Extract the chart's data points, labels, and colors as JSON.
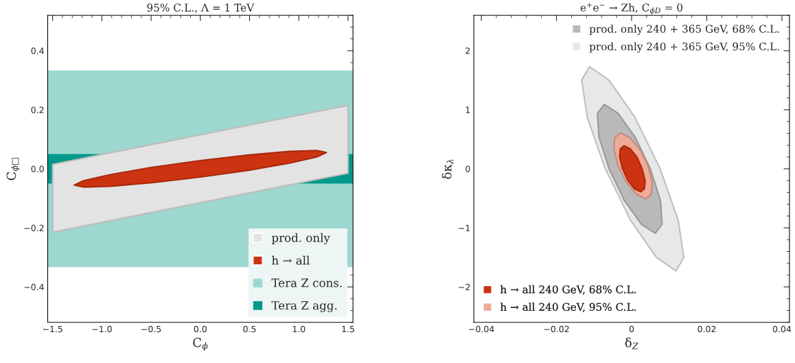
{
  "chart_data": [
    {
      "type": "area",
      "title": "95% C.L., Λ = 1 TeV",
      "xlabel": "C$_{ϕ}$",
      "ylabel": "C$_{ϕ□}$",
      "xlim": [
        -1.55,
        1.55
      ],
      "ylim": [
        -0.52,
        0.52
      ],
      "xticks": [
        {
          "value": -1.5,
          "label": "−1.5"
        },
        {
          "value": -1.0,
          "label": "−1.0"
        },
        {
          "value": -0.5,
          "label": "−0.5"
        },
        {
          "value": 0,
          "label": "0.0"
        },
        0.5,
        {
          "value": 1.0,
          "label": "1.0"
        },
        1.5
      ],
      "yticks": [
        {
          "value": -0.4,
          "label": "−0.4"
        },
        {
          "value": -0.2,
          "label": "−0.2"
        },
        {
          "value": 0,
          "label": "0.0"
        },
        0.2,
        0.4
      ],
      "bands": [
        {
          "axis": "y",
          "from": -0.333,
          "to": 0.333,
          "label": "Tera Z cons.",
          "color": "#9dd8d0"
        },
        {
          "axis": "y",
          "from": -0.05,
          "to": 0.05,
          "label": "Tera Z agg.",
          "color": "#00998a"
        }
      ],
      "series": [
        {
          "name": "prod. only",
          "color": "#e3e3e3",
          "x": [
            -1.5,
            1.5,
            1.5,
            -1.5
          ],
          "values": [
            -0.215,
            -0.015,
            0.215,
            0.015
          ]
        },
        {
          "name": "h → all",
          "color": "#cc3311",
          "x": [
            1.28,
            1.183,
            0.905,
            0.49,
            0,
            -0.49,
            -0.905,
            -1.183,
            -1.28,
            -1.183,
            -0.905,
            -0.49,
            0,
            0.49,
            0.905,
            1.183
          ],
          "values": [
            0.055,
            0.062,
            0.059,
            0.047,
            0.028,
            0.005,
            -0.019,
            -0.04,
            -0.055,
            -0.062,
            -0.059,
            -0.047,
            -0.028,
            -0.005,
            0.019,
            0.04
          ]
        }
      ],
      "legend": "bottom right",
      "grid": false
    },
    {
      "type": "area",
      "title": "e$^{+}$e$^{−}$ → Zh, C$_{ϕD}$ = 0",
      "xlabel": "δ$_{Z}$",
      "ylabel": "δκ$_{λ}$",
      "xlim": [
        -0.042,
        0.042
      ],
      "ylim": [
        -2.6,
        2.6
      ],
      "xticks": [
        {
          "value": -0.04,
          "label": "−0.04"
        },
        {
          "value": -0.02,
          "label": "−0.02"
        },
        0,
        0.02,
        0.04
      ],
      "yticks": [
        {
          "value": -2,
          "label": "−2"
        },
        {
          "value": -1,
          "label": "−1"
        },
        0,
        1,
        2
      ],
      "series": [
        {
          "name": "prod. only 240 + 365 GeV, 95% C.L.",
          "color": "#e8e8e8",
          "x": [
            -0.0112,
            -0.006,
            0.0009,
            0.0076,
            0.0124,
            0.0139,
            0.0118,
            0.0066,
            -0.0003,
            -0.007,
            -0.0118,
            -0.0133
          ],
          "values": [
            1.73,
            1.5,
            0.87,
            0,
            -0.87,
            -1.5,
            -1.73,
            -1.5,
            -0.87,
            0,
            0.87,
            1.5
          ]
        },
        {
          "name": "prod. only 240 + 365 GeV, 68% C.L.",
          "color": "#b9b9b9",
          "x": [
            -0.0073,
            -0.0036,
            0.0009,
            0.005,
            0.0077,
            0.0081,
            0.0063,
            0.0026,
            -0.0019,
            -0.006,
            -0.0087,
            -0.0091
          ],
          "values": [
            1.09,
            0.94,
            0.54,
            0,
            -0.54,
            -0.94,
            -1.09,
            -0.94,
            -0.54,
            0,
            0.54,
            0.94
          ]
        },
        {
          "name": "h → all 240 GeV, 95% C.L.",
          "color": "#efaa98",
          "x": [
            -0.0029,
            -0.0005,
            0.0022,
            0.0044,
            0.0055,
            0.0053,
            0.0037,
            0.0013,
            -0.0014,
            -0.0036,
            -0.0047,
            -0.0045
          ],
          "values": [
            0.61,
            0.53,
            0.33,
            0.05,
            -0.23,
            -0.43,
            -0.51,
            -0.43,
            -0.23,
            0.05,
            0.33,
            0.53
          ]
        },
        {
          "name": "h → all 240 GeV, 68% C.L.",
          "color": "#cc3311",
          "x": [
            -0.002,
            -0.0004,
            0.0014,
            0.0028,
            0.0036,
            0.0034,
            0.0024,
            0.0008,
            -0.001,
            -0.0024,
            -0.0032,
            -0.003
          ],
          "values": [
            0.39,
            0.34,
            0.2,
            0,
            -0.2,
            -0.34,
            -0.39,
            -0.34,
            -0.2,
            0,
            0.2,
            0.34
          ]
        }
      ],
      "legend": "top right",
      "grid": false
    }
  ]
}
